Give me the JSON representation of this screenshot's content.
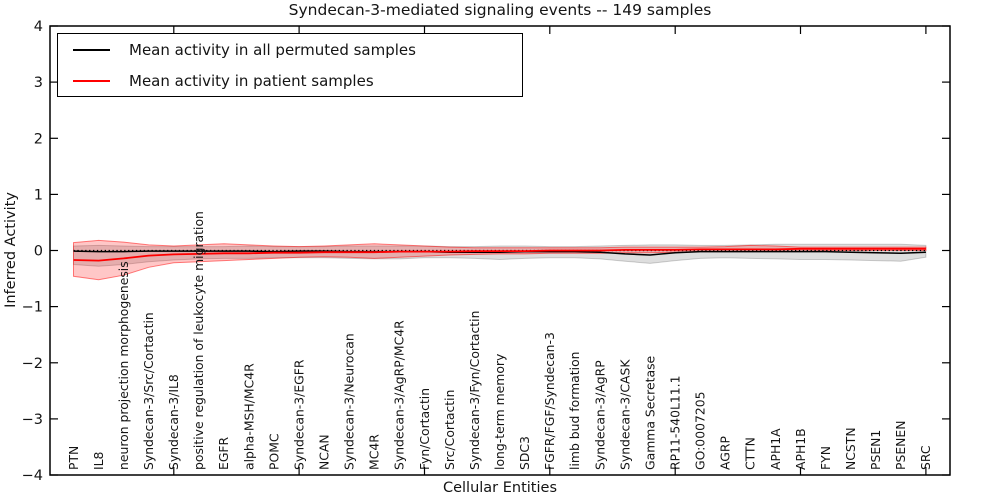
{
  "figure": {
    "background": "#ffffff"
  },
  "chart_data": {
    "type": "line",
    "title": "Syndecan-3-mediated signaling events -- 149 samples",
    "xlabel": "Cellular Entities",
    "ylabel": "Inferred Activity",
    "ylim": [
      -4,
      4
    ],
    "yticks": [
      4,
      3,
      2,
      1,
      0,
      -1,
      -2,
      -3,
      -4
    ],
    "x_major_tick_indices": [
      4,
      9,
      14,
      19,
      24,
      29,
      34
    ],
    "grid": false,
    "legend_position": "upper-left",
    "zero_line": {
      "y": 0,
      "style": "dotted",
      "color": "#000000"
    },
    "categories": [
      "PTN",
      "IL8",
      "neuron projection morphogenesis",
      "Syndecan-3/Src/Cortactin",
      "Syndecan-3/IL8",
      "positive regulation of leukocyte migration",
      "EGFR",
      "alpha-MSH/MC4R",
      "POMC",
      "Syndecan-3/EGFR",
      "NCAN",
      "Syndecan-3/Neurocan",
      "MC4R",
      "Syndecan-3/AgRP/MC4R",
      "Fyn/Cortactin",
      "Src/Cortactin",
      "Syndecan-3/Fyn/Cortactin",
      "long-term memory",
      "SDC3",
      "FGFR/FGF/Syndecan-3",
      "limb bud formation",
      "Syndecan-3/AgRP",
      "Syndecan-3/CASK",
      "Gamma Secretase",
      "RP11-540L11.1",
      "GO:0007205",
      "AGRP",
      "CTTN",
      "APH1A",
      "APH1B",
      "FYN",
      "NCSTN",
      "PSEN1",
      "PSENEN",
      "SRC"
    ],
    "series": [
      {
        "name": "Mean activity in all permuted samples",
        "color": "#000000",
        "line_width": 1.5,
        "band_color": "rgba(0,0,0,0.13)",
        "band_edge_color": "rgba(0,0,0,0.18)",
        "values": [
          -0.01,
          -0.02,
          -0.02,
          -0.01,
          -0.01,
          -0.01,
          -0.01,
          -0.01,
          -0.02,
          -0.01,
          -0.01,
          -0.02,
          -0.02,
          -0.02,
          -0.02,
          -0.03,
          -0.03,
          -0.03,
          -0.02,
          -0.02,
          -0.02,
          -0.03,
          -0.06,
          -0.08,
          -0.04,
          -0.02,
          -0.02,
          -0.02,
          -0.02,
          -0.02,
          -0.02,
          -0.03,
          -0.04,
          -0.05,
          -0.03
        ],
        "band_upper": [
          0.08,
          0.09,
          0.08,
          0.07,
          0.07,
          0.07,
          0.07,
          0.08,
          0.07,
          0.07,
          0.07,
          0.08,
          0.08,
          0.08,
          0.08,
          0.07,
          0.07,
          0.08,
          0.08,
          0.07,
          0.07,
          0.08,
          0.09,
          0.1,
          0.1,
          0.09,
          0.09,
          0.1,
          0.11,
          0.11,
          0.11,
          0.11,
          0.11,
          0.11,
          0.09
        ],
        "band_lower": [
          -0.25,
          -0.28,
          -0.25,
          -0.2,
          -0.17,
          -0.15,
          -0.14,
          -0.14,
          -0.13,
          -0.13,
          -0.13,
          -0.14,
          -0.15,
          -0.15,
          -0.13,
          -0.13,
          -0.14,
          -0.16,
          -0.14,
          -0.13,
          -0.13,
          -0.15,
          -0.19,
          -0.23,
          -0.18,
          -0.14,
          -0.13,
          -0.14,
          -0.15,
          -0.16,
          -0.16,
          -0.17,
          -0.18,
          -0.19,
          -0.12
        ]
      },
      {
        "name": "Mean activity in patient samples",
        "color": "#ff0000",
        "line_width": 1.8,
        "band_color": "rgba(255,0,0,0.22)",
        "band_edge_color": "rgba(255,0,0,0.5)",
        "values": [
          -0.17,
          -0.18,
          -0.14,
          -0.09,
          -0.07,
          -0.06,
          -0.05,
          -0.05,
          -0.04,
          -0.04,
          -0.03,
          -0.03,
          -0.03,
          -0.02,
          -0.02,
          -0.02,
          -0.01,
          -0.01,
          -0.01,
          0.0,
          0.0,
          0.0,
          0.01,
          0.01,
          0.01,
          0.02,
          0.02,
          0.02,
          0.02,
          0.03,
          0.03,
          0.03,
          0.03,
          0.03,
          0.03
        ],
        "band_upper": [
          0.14,
          0.18,
          0.15,
          0.1,
          0.08,
          0.1,
          0.12,
          0.1,
          0.08,
          0.07,
          0.08,
          0.1,
          0.12,
          0.1,
          0.08,
          0.06,
          0.05,
          0.05,
          0.05,
          0.05,
          0.05,
          0.05,
          0.06,
          0.06,
          0.06,
          0.06,
          0.07,
          0.09,
          0.08,
          0.06,
          0.06,
          0.06,
          0.06,
          0.06,
          0.06
        ],
        "band_lower": [
          -0.46,
          -0.52,
          -0.44,
          -0.3,
          -0.22,
          -0.2,
          -0.18,
          -0.16,
          -0.14,
          -0.12,
          -0.11,
          -0.12,
          -0.14,
          -0.12,
          -0.1,
          -0.08,
          -0.07,
          -0.06,
          -0.06,
          -0.05,
          -0.05,
          -0.05,
          -0.04,
          -0.04,
          -0.03,
          -0.02,
          -0.02,
          -0.02,
          -0.01,
          -0.01,
          0.0,
          0.0,
          0.0,
          0.0,
          0.0
        ]
      }
    ]
  }
}
